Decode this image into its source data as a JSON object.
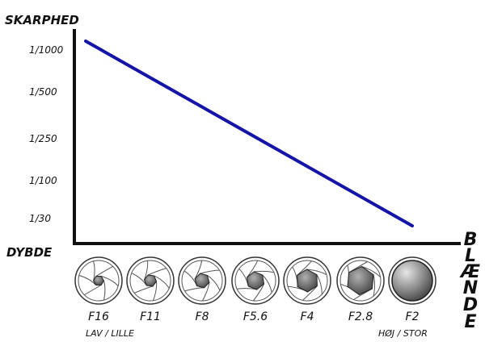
{
  "chart_data": {
    "type": "line",
    "title": "",
    "ylabel": "SKARPHED",
    "origin_label": "DYBDE",
    "xlabel": "BLÆNDE",
    "xlabel_letters": [
      "B",
      "L",
      "Æ",
      "N",
      "D",
      "E"
    ],
    "y_ticks": [
      "1/1000",
      "1/500",
      "1/250",
      "1/100",
      "1/30"
    ],
    "categories": [
      "F16",
      "F11",
      "F8",
      "F5.6",
      "F4",
      "F2.8",
      "F2"
    ],
    "x_end_labels": {
      "left": "LAV / LILLE",
      "right": "HØJ / STOR"
    },
    "aperture_openness": [
      0.12,
      0.18,
      0.26,
      0.36,
      0.5,
      0.68,
      1.0
    ],
    "series": [
      {
        "points": [
          {
            "x": "F16",
            "y": "1/1000"
          },
          {
            "x": "F2",
            "y": "1/30"
          }
        ]
      }
    ],
    "grid": false,
    "colors": {
      "line": "#1414a8",
      "axis": "#111111",
      "aperture_fill": "#606060"
    }
  }
}
